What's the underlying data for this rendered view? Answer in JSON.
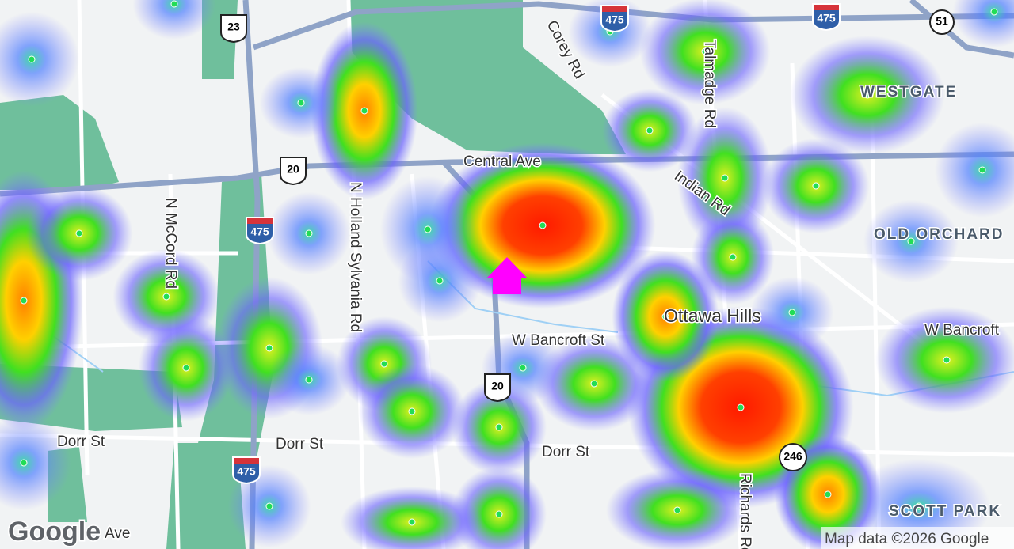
{
  "map": {
    "roads": [
      "Corey Rd",
      "Talmadge Rd",
      "Central Ave",
      "Indian Rd",
      "N McCord Rd",
      "N Holland Sylvania Rd",
      "W Bancroft St",
      "W Bancroft",
      "Dorr St",
      "Dorr St",
      "Dorr St",
      "Richards Rd",
      "Ave"
    ],
    "places": [
      "WESTGATE",
      "OLD ORCHARD",
      "SCOTT PARK"
    ],
    "town": "Ottawa Hills",
    "shields": [
      "23",
      "20",
      "475",
      "475",
      "475",
      "475",
      "51",
      "246",
      "20"
    ]
  },
  "attribution": {
    "logo": "Google",
    "text": "Map data ©2026 Google"
  }
}
